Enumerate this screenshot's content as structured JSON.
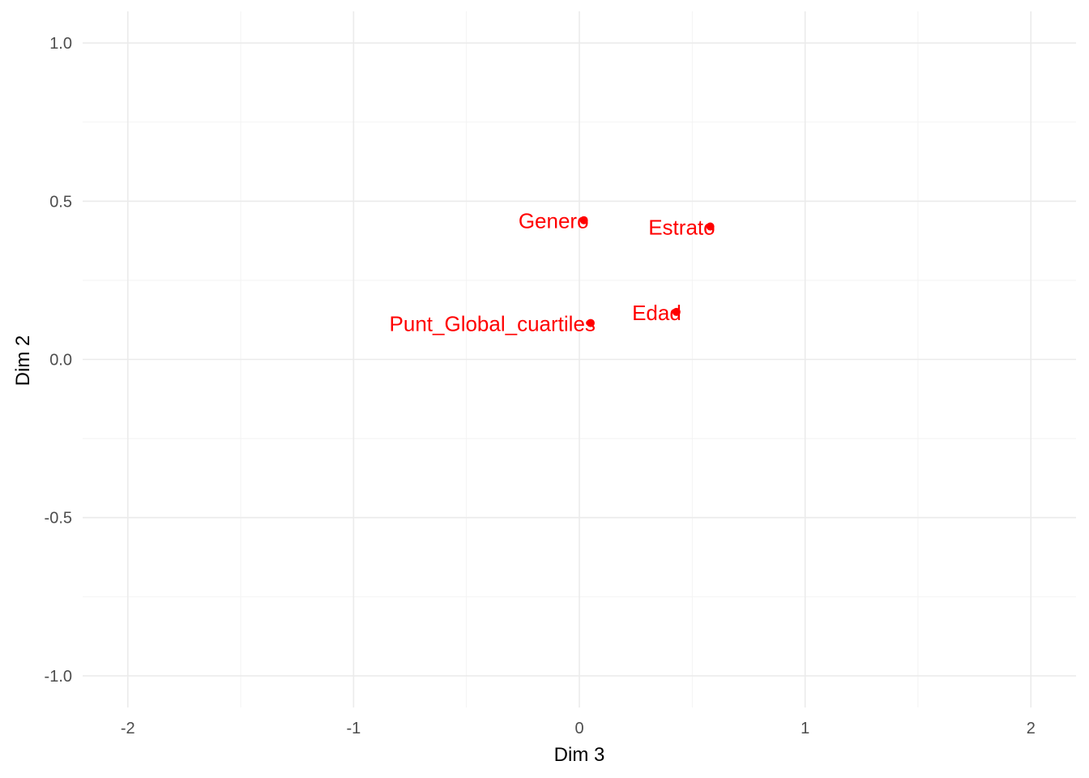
{
  "chart_data": {
    "type": "scatter",
    "xlabel": "Dim 3",
    "ylabel": "Dim 2",
    "xlim": [
      -2.2,
      2.2
    ],
    "ylim": [
      -1.1,
      1.1
    ],
    "x_ticks": [
      -2,
      -1,
      0,
      1,
      2
    ],
    "x_tick_labels": [
      "-2",
      "-1",
      "0",
      "1",
      "2"
    ],
    "y_ticks": [
      -1.0,
      -0.5,
      0.0,
      0.5,
      1.0
    ],
    "y_tick_labels": [
      "-1.0",
      "-0.5",
      "0.0",
      "0.5",
      "1.0"
    ],
    "grid": true,
    "legend": "none",
    "point_color": "#ff0000",
    "points": [
      {
        "label": "Genero",
        "x": 0.02,
        "y": 0.44
      },
      {
        "label": "Estrato",
        "x": 0.58,
        "y": 0.42
      },
      {
        "label": "Edad",
        "x": 0.43,
        "y": 0.15
      },
      {
        "label": "Punt_Global_cuartiles",
        "x": 0.05,
        "y": 0.115
      }
    ]
  }
}
